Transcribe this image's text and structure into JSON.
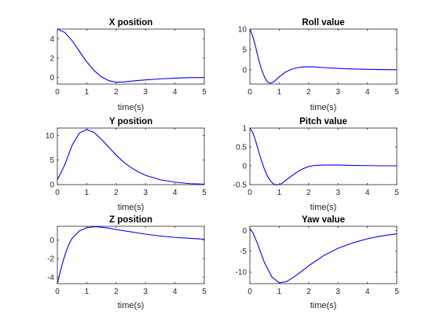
{
  "chart_data": [
    {
      "type": "line",
      "title": "X position",
      "xlabel": "time(s)",
      "ylabel": "",
      "xlim": [
        0,
        5
      ],
      "ylim": [
        -0.7,
        5
      ],
      "xticks": [
        0,
        1,
        2,
        3,
        4,
        5
      ],
      "yticks": [
        0,
        2,
        4
      ],
      "color": "#0000ff",
      "grid": false,
      "series": [
        {
          "x": [
            0,
            0.25,
            0.5,
            0.75,
            1,
            1.25,
            1.5,
            1.75,
            2,
            2.25,
            2.5,
            2.75,
            3,
            3.5,
            4,
            4.5,
            5
          ],
          "y": [
            5,
            4.65,
            3.8,
            2.7,
            1.6,
            0.7,
            0.05,
            -0.35,
            -0.5,
            -0.48,
            -0.4,
            -0.33,
            -0.27,
            -0.16,
            -0.08,
            -0.03,
            -0.02
          ]
        }
      ]
    },
    {
      "type": "line",
      "title": "Roll value",
      "xlabel": "time(s)",
      "ylabel": "",
      "xlim": [
        0,
        5
      ],
      "ylim": [
        -3.5,
        10
      ],
      "xticks": [
        0,
        1,
        2,
        3,
        4,
        5
      ],
      "yticks": [
        0,
        5,
        10
      ],
      "color": "#0000ff",
      "grid": false,
      "series": [
        {
          "x": [
            0,
            0.1,
            0.2,
            0.3,
            0.4,
            0.5,
            0.6,
            0.7,
            0.8,
            0.9,
            1.0,
            1.2,
            1.4,
            1.6,
            1.8,
            2.0,
            2.2,
            2.5,
            3,
            3.5,
            4,
            4.5,
            5
          ],
          "y": [
            10,
            8.2,
            5.5,
            2.5,
            0.0,
            -1.8,
            -3.0,
            -3.3,
            -3.0,
            -2.4,
            -1.7,
            -0.6,
            0.1,
            0.5,
            0.7,
            0.75,
            0.7,
            0.55,
            0.35,
            0.2,
            0.1,
            0.05,
            0.0
          ]
        }
      ]
    },
    {
      "type": "line",
      "title": "Y position",
      "xlabel": "time(s)",
      "ylabel": "",
      "xlim": [
        0,
        5
      ],
      "ylim": [
        0,
        11.5
      ],
      "xticks": [
        0,
        1,
        2,
        3,
        4,
        5
      ],
      "yticks": [
        0,
        5,
        10
      ],
      "color": "#0000ff",
      "grid": false,
      "series": [
        {
          "x": [
            0,
            0.25,
            0.5,
            0.75,
            1,
            1.25,
            1.5,
            1.75,
            2,
            2.25,
            2.5,
            2.75,
            3,
            3.5,
            4,
            4.5,
            5
          ],
          "y": [
            1.0,
            4.0,
            8.0,
            10.5,
            11.2,
            10.6,
            9.2,
            7.6,
            6.0,
            4.6,
            3.5,
            2.6,
            1.9,
            1.0,
            0.5,
            0.2,
            0.1
          ]
        }
      ]
    },
    {
      "type": "line",
      "title": "Pitch value",
      "xlabel": "time(s)",
      "ylabel": "",
      "xlim": [
        0,
        5
      ],
      "ylim": [
        -0.5,
        1
      ],
      "xticks": [
        0,
        1,
        2,
        3,
        4,
        5
      ],
      "yticks": [
        -0.5,
        0,
        0.5,
        1
      ],
      "color": "#0000ff",
      "grid": false,
      "series": [
        {
          "x": [
            0,
            0.1,
            0.2,
            0.3,
            0.4,
            0.5,
            0.6,
            0.7,
            0.8,
            0.9,
            1.0,
            1.1,
            1.2,
            1.4,
            1.6,
            1.8,
            2.0,
            2.2,
            2.5,
            3,
            3.5,
            4,
            4.5,
            5
          ],
          "y": [
            1.0,
            0.88,
            0.65,
            0.38,
            0.12,
            -0.1,
            -0.28,
            -0.4,
            -0.48,
            -0.51,
            -0.5,
            -0.46,
            -0.4,
            -0.28,
            -0.17,
            -0.08,
            -0.02,
            0.01,
            0.02,
            0.02,
            0.01,
            0.005,
            0.0,
            0.0
          ]
        }
      ]
    },
    {
      "type": "line",
      "title": "Z position",
      "xlabel": "time(s)",
      "ylabel": "",
      "xlim": [
        0,
        5
      ],
      "ylim": [
        -4.7,
        1.5
      ],
      "xticks": [
        0,
        1,
        2,
        3,
        4,
        5
      ],
      "yticks": [
        -4,
        -2,
        0
      ],
      "color": "#0000ff",
      "grid": false,
      "series": [
        {
          "x": [
            0,
            0.1,
            0.2,
            0.3,
            0.4,
            0.5,
            0.75,
            1,
            1.25,
            1.5,
            1.75,
            2,
            2.5,
            3,
            3.5,
            4,
            4.5,
            5
          ],
          "y": [
            -4.7,
            -3.4,
            -2.2,
            -1.2,
            -0.4,
            0.2,
            1.0,
            1.35,
            1.45,
            1.4,
            1.3,
            1.15,
            0.9,
            0.65,
            0.45,
            0.3,
            0.2,
            0.1
          ]
        }
      ]
    },
    {
      "type": "line",
      "title": "Yaw value",
      "xlabel": "time(s)",
      "ylabel": "",
      "xlim": [
        0,
        5
      ],
      "ylim": [
        -12.8,
        1
      ],
      "xticks": [
        0,
        1,
        2,
        3,
        4,
        5
      ],
      "yticks": [
        -10,
        -5,
        0
      ],
      "color": "#0000ff",
      "grid": false,
      "series": [
        {
          "x": [
            0,
            0.1,
            0.25,
            0.5,
            0.75,
            1.0,
            1.25,
            1.5,
            1.75,
            2.0,
            2.5,
            3,
            3.5,
            4,
            4.5,
            5
          ],
          "y": [
            0.5,
            -0.5,
            -3.0,
            -7.8,
            -11.2,
            -12.6,
            -12.3,
            -11.2,
            -9.9,
            -8.5,
            -6.1,
            -4.3,
            -3.0,
            -2.0,
            -1.3,
            -0.8
          ]
        }
      ]
    }
  ]
}
